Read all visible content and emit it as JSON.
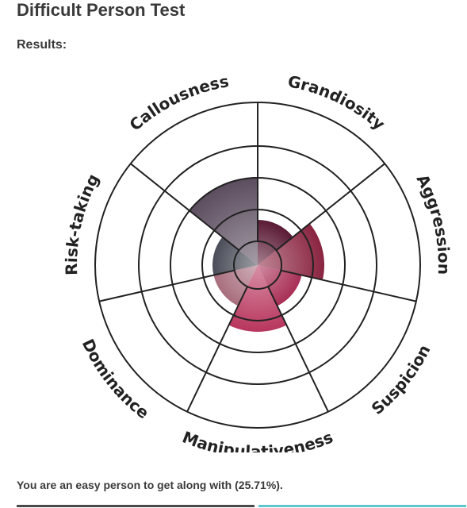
{
  "page": {
    "title": "Difficult Person Test",
    "results_label": "Results:",
    "summary": "You are an easy person to get along with (25.71%)."
  },
  "chart_data": {
    "type": "polar-area",
    "title": "",
    "categories": [
      "Callousness",
      "Grandiosity",
      "Aggression",
      "Suspicion",
      "Manipulativeness",
      "Dominance",
      "Risk-taking"
    ],
    "series": [
      {
        "values": [
          0.75,
          0.25,
          0.5,
          0.25,
          0.5,
          0.25,
          0.25
        ],
        "colors": [
          "#5b4c5e",
          "#5a1a34",
          "#8a2440",
          "#a82e56",
          "#b8365e",
          "#a86e7e",
          "#4a4d58"
        ]
      }
    ],
    "rings": 4,
    "grid": true
  }
}
